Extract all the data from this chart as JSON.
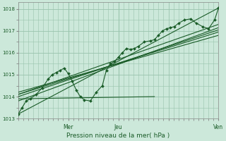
{
  "background_color": "#cce8da",
  "plot_bg_color": "#cce8da",
  "grid_color": "#99c4ad",
  "line_color": "#1a5c28",
  "marker_color": "#1a5c28",
  "xlabel": "Pression niveau de la mer( hPa )",
  "ylim": [
    1013.0,
    1018.3
  ],
  "yticks": [
    1013,
    1014,
    1015,
    1016,
    1017,
    1018
  ],
  "xlim": [
    0,
    100
  ],
  "xtick_positions": [
    25,
    50,
    75,
    100
  ],
  "xtick_labels": [
    "Mer",
    "Jeu",
    "",
    "Ven"
  ],
  "straight_lines": [
    {
      "x0": 0,
      "y0": 1013.2,
      "x1": 100,
      "y1": 1018.05
    },
    {
      "x0": 0,
      "y0": 1013.8,
      "x1": 100,
      "y1": 1017.15
    },
    {
      "x0": 0,
      "y0": 1014.0,
      "x1": 100,
      "y1": 1017.05
    },
    {
      "x0": 0,
      "y0": 1014.1,
      "x1": 100,
      "y1": 1016.95
    },
    {
      "x0": 0,
      "y0": 1014.2,
      "x1": 100,
      "y1": 1016.8
    },
    {
      "x0": 0,
      "y0": 1014.1,
      "x1": 100,
      "y1": 1017.3
    },
    {
      "x0": 0,
      "y0": 1013.9,
      "x1": 68,
      "y1": 1014.0
    }
  ],
  "main_series_x": [
    0,
    2,
    4,
    6,
    9,
    12,
    15,
    17,
    19,
    21,
    23,
    25,
    27,
    29,
    31,
    33,
    36,
    39,
    42,
    44,
    46,
    48,
    50,
    52,
    54,
    56,
    58,
    60,
    63,
    66,
    68,
    70,
    72,
    74,
    76,
    78,
    80,
    83,
    86,
    89,
    92,
    95,
    98,
    100
  ],
  "main_series_y": [
    1013.2,
    1013.5,
    1013.8,
    1013.9,
    1014.1,
    1014.4,
    1014.8,
    1015.0,
    1015.1,
    1015.2,
    1015.3,
    1015.05,
    1014.7,
    1014.3,
    1014.0,
    1013.85,
    1013.8,
    1014.2,
    1014.5,
    1015.2,
    1015.5,
    1015.6,
    1015.8,
    1016.0,
    1016.2,
    1016.15,
    1016.2,
    1016.3,
    1016.5,
    1016.55,
    1016.6,
    1016.8,
    1017.0,
    1017.1,
    1017.15,
    1017.2,
    1017.35,
    1017.5,
    1017.55,
    1017.35,
    1017.2,
    1017.1,
    1017.5,
    1018.05
  ]
}
